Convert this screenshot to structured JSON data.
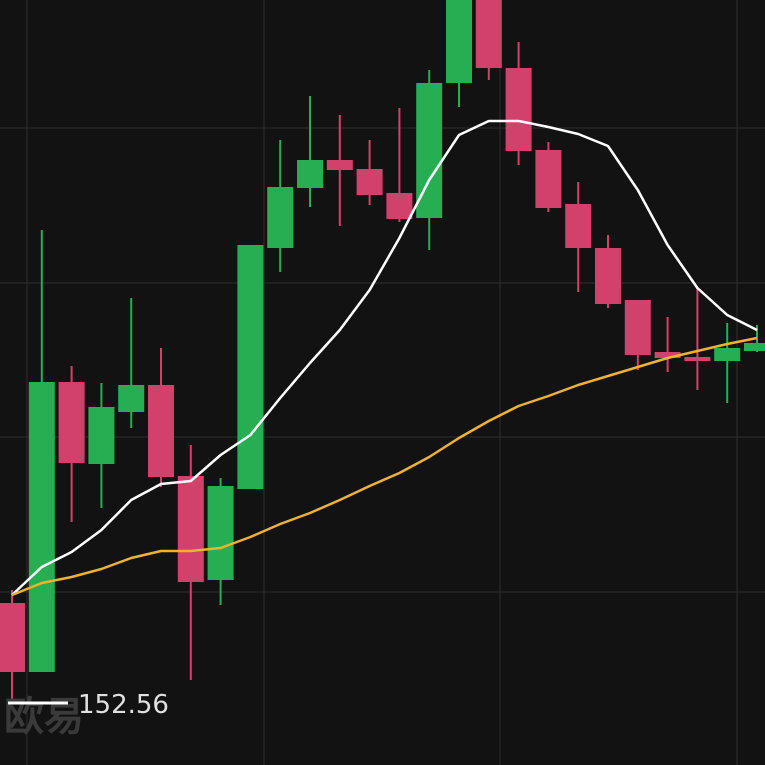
{
  "chart_data": {
    "type": "candlestick",
    "ylim": [
      0,
      765
    ],
    "up_color": "#27ae52",
    "down_color": "#d2416b",
    "open": [
      162,
      93,
      383,
      301,
      353,
      380,
      289,
      185,
      276,
      517,
      577,
      605,
      596,
      572,
      547,
      682,
      765,
      697,
      615,
      561,
      517,
      465,
      413,
      408,
      404,
      414
    ],
    "close": [
      93,
      383,
      302,
      358,
      380,
      288,
      183,
      279,
      520,
      578,
      605,
      595,
      570,
      546,
      682,
      765,
      697,
      614,
      557,
      517,
      461,
      410,
      407,
      404,
      417,
      422
    ],
    "high": [
      175,
      535,
      399,
      382,
      467,
      417,
      320,
      287,
      520,
      625,
      669,
      650,
      625,
      657,
      695,
      765,
      765,
      723,
      623,
      583,
      530,
      465,
      448,
      478,
      442,
      440
    ],
    "low": [
      65,
      93,
      243,
      257,
      337,
      278,
      85,
      160,
      276,
      493,
      558,
      539,
      560,
      543,
      515,
      658,
      685,
      600,
      553,
      473,
      457,
      395,
      393,
      375,
      362,
      413
    ],
    "lines": [
      {
        "color": "#ffffff",
        "values": [
          170,
          198,
          213,
          235,
          265,
          281,
          284,
          310,
          330,
          367,
          402,
          435,
          475,
          527,
          585,
          630,
          644,
          644,
          638,
          631,
          619,
          575,
          520,
          477,
          450,
          435
        ]
      },
      {
        "color": "#f0b230",
        "values": [
          170,
          182,
          188,
          196,
          207,
          214,
          214,
          217,
          228,
          241,
          252,
          265,
          279,
          292,
          308,
          327,
          344,
          359,
          369,
          380,
          389,
          398,
          407,
          414,
          421,
          427
        ]
      }
    ],
    "legend_label": "152.56",
    "watermark": "欧易"
  }
}
